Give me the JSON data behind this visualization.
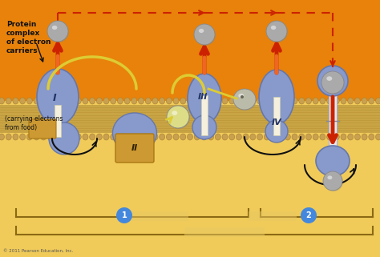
{
  "bg_top": "#E8820A",
  "bg_bottom": "#F0CB5A",
  "membrane_tan": "#C8A855",
  "membrane_dot": "#C8A050",
  "complex_color": "#8899CC",
  "complex_color2": "#9AAAD4",
  "complex_color_dark": "#6677AA",
  "arrow_red": "#CC2200",
  "arrow_orange": "#DD4400",
  "arrow_black": "#111111",
  "dashed_red": "#CC2200",
  "yellow_curve": "#DDCC33",
  "text_color": "#111111",
  "label_blue": "#4488DD",
  "sphere_gray": "#AAAAAA",
  "protein_text": "Protein\ncomplex\nof electron\ncarriers",
  "carrying_text": "(carrying electrons\nfrom food)",
  "roman_I": "I",
  "roman_II": "II",
  "roman_III": "III",
  "roman_IV": "IV",
  "copyright": "© 2011 Pearson Education, Inc.",
  "fig_width": 4.74,
  "fig_height": 3.21,
  "dpi": 100
}
